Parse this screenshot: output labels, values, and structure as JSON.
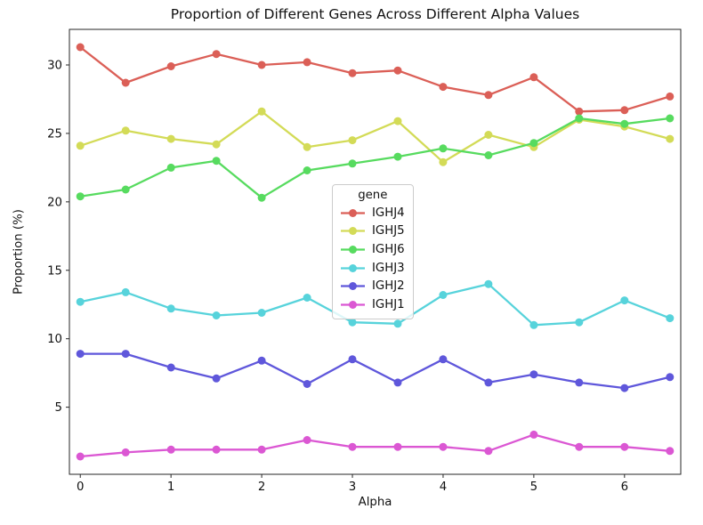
{
  "title": "Proportion of Different Genes Across Different Alpha Values",
  "chart_data": {
    "type": "line",
    "title": "Proportion of Different Genes Across Different Alpha Values",
    "xlabel": "Alpha",
    "ylabel": "Proportion (%)",
    "x": [
      0,
      0.5,
      1,
      1.5,
      2,
      2.5,
      3,
      3.5,
      4,
      4.5,
      5,
      5.5,
      6,
      6.5
    ],
    "series": [
      {
        "name": "IGHJ4",
        "color": "#db5f57",
        "values": [
          31.3,
          28.7,
          29.9,
          30.8,
          30.0,
          30.2,
          29.4,
          29.6,
          28.4,
          27.8,
          29.1,
          26.6,
          26.7,
          27.7
        ]
      },
      {
        "name": "IGHJ5",
        "color": "#d3db57",
        "values": [
          24.1,
          25.2,
          24.6,
          24.2,
          26.6,
          24.0,
          24.5,
          25.9,
          22.9,
          24.9,
          24.0,
          26.0,
          25.5,
          24.6
        ]
      },
      {
        "name": "IGHJ6",
        "color": "#57db5f",
        "values": [
          20.4,
          20.9,
          22.5,
          23.0,
          20.3,
          22.3,
          22.8,
          23.3,
          23.9,
          23.4,
          24.3,
          26.1,
          25.7,
          26.1
        ]
      },
      {
        "name": "IGHJ3",
        "color": "#57d3db",
        "values": [
          12.7,
          13.4,
          12.2,
          11.7,
          11.9,
          13.0,
          11.2,
          11.1,
          13.2,
          14.0,
          11.0,
          11.2,
          12.8,
          11.5
        ]
      },
      {
        "name": "IGHJ2",
        "color": "#5f57db",
        "values": [
          8.9,
          8.9,
          7.9,
          7.1,
          8.4,
          6.7,
          8.5,
          6.8,
          8.5,
          6.8,
          7.4,
          6.8,
          6.4,
          7.2
        ]
      },
      {
        "name": "IGHJ1",
        "color": "#db57d3",
        "values": [
          1.4,
          1.7,
          1.9,
          1.9,
          1.9,
          2.6,
          2.1,
          2.1,
          2.1,
          1.8,
          3.0,
          2.1,
          2.1,
          1.8
        ]
      }
    ],
    "xticks": [
      0,
      1,
      2,
      3,
      4,
      5,
      6
    ],
    "yticks": [
      5,
      10,
      15,
      20,
      25,
      30
    ],
    "xlim": [
      -0.12,
      6.62
    ],
    "ylim": [
      0.1,
      32.6
    ],
    "grid": false,
    "legend": {
      "title": "gene",
      "position": "center"
    }
  }
}
